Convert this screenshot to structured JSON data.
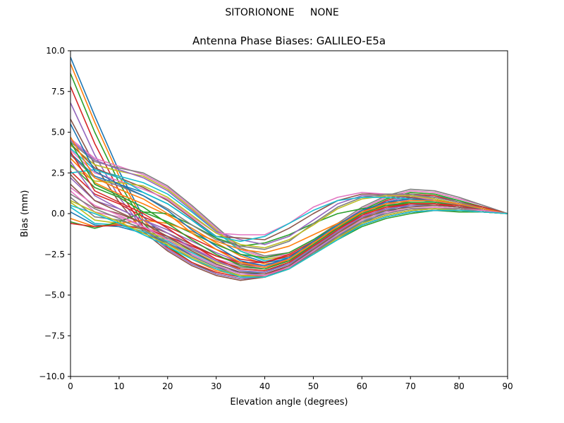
{
  "figure": {
    "suptitle": "SITORIONONE     NONE"
  },
  "chart_data": {
    "type": "line",
    "title": "Antenna Phase Biases: GALILEO-E5a",
    "xlabel": "Elevation angle (degrees)",
    "ylabel": "Bias (mm)",
    "xlim": [
      0,
      90
    ],
    "ylim": [
      -10,
      10
    ],
    "xticks": [
      0,
      10,
      20,
      30,
      40,
      50,
      60,
      70,
      80,
      90
    ],
    "xtick_labels": [
      "0",
      "10",
      "20",
      "30",
      "40",
      "50",
      "60",
      "70",
      "80",
      "90"
    ],
    "yticks": [
      -10,
      -7.5,
      -5,
      -2.5,
      0,
      2.5,
      5,
      7.5,
      10
    ],
    "ytick_labels": [
      "−10.0",
      "−7.5",
      "−5.0",
      "−2.5",
      "0.0",
      "2.5",
      "5.0",
      "7.5",
      "10.0"
    ],
    "grid": false,
    "legend": "none",
    "x": [
      0,
      5,
      10,
      15,
      20,
      25,
      30,
      35,
      40,
      45,
      50,
      55,
      60,
      65,
      70,
      75,
      80,
      85,
      90
    ],
    "series": [
      {
        "color": "#1f77b4",
        "values": [
          9.6,
          6.0,
          2.6,
          -0.2,
          -1.6,
          -2.6,
          -3.3,
          -3.6,
          -3.6,
          -3.0,
          -2.2,
          -1.3,
          -0.6,
          -0.1,
          0.2,
          0.3,
          0.2,
          0.1,
          0.0
        ]
      },
      {
        "color": "#ff7f0e",
        "values": [
          9.2,
          5.6,
          2.3,
          -0.4,
          -1.8,
          -2.8,
          -3.5,
          -3.8,
          -3.8,
          -3.2,
          -2.4,
          -1.5,
          -0.7,
          -0.2,
          0.1,
          0.2,
          0.2,
          0.1,
          0.0
        ]
      },
      {
        "color": "#2ca02c",
        "values": [
          8.6,
          5.0,
          1.9,
          -0.6,
          -2.0,
          -3.0,
          -3.7,
          -4.0,
          -3.9,
          -3.3,
          -2.5,
          -1.6,
          -0.8,
          -0.3,
          0.0,
          0.2,
          0.1,
          0.1,
          0.0
        ]
      },
      {
        "color": "#d62728",
        "values": [
          7.8,
          4.3,
          1.4,
          -0.8,
          -2.1,
          -3.0,
          -3.6,
          -3.9,
          -3.8,
          -3.2,
          -2.3,
          -1.4,
          -0.6,
          -0.1,
          0.2,
          0.3,
          0.2,
          0.1,
          0.0
        ]
      },
      {
        "color": "#9467bd",
        "values": [
          6.8,
          3.6,
          1.0,
          -0.9,
          -2.2,
          -3.1,
          -3.7,
          -4.0,
          -3.9,
          -3.3,
          -2.4,
          -1.5,
          -0.7,
          -0.2,
          0.1,
          0.2,
          0.2,
          0.1,
          0.0
        ]
      },
      {
        "color": "#8c564b",
        "values": [
          5.8,
          3.0,
          0.7,
          -1.1,
          -2.3,
          -3.2,
          -3.8,
          -4.1,
          -3.9,
          -3.3,
          -2.4,
          -1.5,
          -0.7,
          -0.2,
          0.1,
          0.2,
          0.2,
          0.1,
          0.0
        ]
      },
      {
        "color": "#e377c2",
        "values": [
          4.6,
          3.4,
          2.9,
          2.4,
          1.6,
          0.4,
          -0.9,
          -2.2,
          -2.7,
          -2.5,
          -1.7,
          -0.7,
          0.3,
          1.0,
          1.4,
          1.3,
          0.9,
          0.5,
          0.0
        ]
      },
      {
        "color": "#7f7f7f",
        "values": [
          4.4,
          3.2,
          2.8,
          2.5,
          1.7,
          0.5,
          -0.8,
          -2.1,
          -2.6,
          -2.4,
          -1.6,
          -0.6,
          0.4,
          1.1,
          1.5,
          1.4,
          1.0,
          0.5,
          0.0
        ]
      },
      {
        "color": "#bcbd22",
        "values": [
          4.2,
          3.0,
          2.6,
          2.3,
          1.5,
          0.3,
          -1.0,
          -2.3,
          -2.8,
          -2.6,
          -1.8,
          -0.8,
          0.2,
          0.9,
          1.3,
          1.2,
          0.8,
          0.4,
          0.0
        ]
      },
      {
        "color": "#17becf",
        "values": [
          4.0,
          2.7,
          2.3,
          1.9,
          1.2,
          0.1,
          -1.1,
          -2.3,
          -2.9,
          -2.7,
          -1.9,
          -0.9,
          0.1,
          0.8,
          1.2,
          1.1,
          0.8,
          0.4,
          0.0
        ]
      },
      {
        "color": "#1f77b4",
        "values": [
          3.7,
          2.3,
          1.8,
          1.3,
          0.6,
          -0.4,
          -1.5,
          -2.5,
          -3.0,
          -2.8,
          -2.0,
          -1.0,
          0.0,
          0.7,
          1.1,
          1.0,
          0.7,
          0.4,
          0.0
        ]
      },
      {
        "color": "#ff7f0e",
        "values": [
          3.4,
          1.9,
          1.2,
          0.6,
          -0.1,
          -0.9,
          -1.8,
          -2.6,
          -3.1,
          -2.9,
          -2.1,
          -1.1,
          -0.1,
          0.6,
          1.0,
          0.9,
          0.6,
          0.3,
          0.0
        ]
      },
      {
        "color": "#2ca02c",
        "values": [
          3.0,
          1.6,
          1.0,
          0.1,
          -0.5,
          -1.2,
          -1.9,
          -2.5,
          -2.7,
          -2.4,
          -1.6,
          -0.7,
          0.2,
          0.9,
          1.3,
          1.2,
          0.8,
          0.4,
          0.0
        ]
      },
      {
        "color": "#d62728",
        "values": [
          2.6,
          1.2,
          0.6,
          -0.2,
          -0.8,
          -1.5,
          -2.2,
          -2.8,
          -3.0,
          -2.6,
          -1.8,
          -0.8,
          0.1,
          0.8,
          1.2,
          1.1,
          0.7,
          0.4,
          0.0
        ]
      },
      {
        "color": "#9467bd",
        "values": [
          2.2,
          0.8,
          0.3,
          -0.4,
          -1.0,
          -1.7,
          -2.4,
          -3.0,
          -3.2,
          -2.8,
          -1.9,
          -0.9,
          0.0,
          0.7,
          1.1,
          1.0,
          0.7,
          0.3,
          0.0
        ]
      },
      {
        "color": "#8c564b",
        "values": [
          1.8,
          0.4,
          0.0,
          -0.6,
          -1.2,
          -1.9,
          -2.6,
          -3.1,
          -3.3,
          -2.9,
          -2.0,
          -1.0,
          -0.1,
          0.6,
          1.0,
          0.9,
          0.6,
          0.3,
          0.0
        ]
      },
      {
        "color": "#e377c2",
        "values": [
          1.4,
          0.1,
          -0.2,
          -0.8,
          -1.4,
          -2.1,
          -2.8,
          -3.2,
          -3.3,
          -2.8,
          -1.9,
          -1.0,
          -0.2,
          0.5,
          0.9,
          0.9,
          0.6,
          0.3,
          0.0
        ]
      },
      {
        "color": "#7f7f7f",
        "values": [
          1.0,
          -0.2,
          -0.4,
          -0.9,
          -1.5,
          -2.2,
          -2.9,
          -3.3,
          -3.4,
          -2.9,
          -2.0,
          -1.1,
          -0.3,
          0.4,
          0.8,
          0.8,
          0.5,
          0.3,
          0.0
        ]
      },
      {
        "color": "#bcbd22",
        "values": [
          0.7,
          -0.4,
          -0.6,
          -1.0,
          -1.6,
          -2.3,
          -3.0,
          -3.4,
          -3.5,
          -3.0,
          -2.1,
          -1.2,
          -0.4,
          0.3,
          0.7,
          0.7,
          0.5,
          0.2,
          0.0
        ]
      },
      {
        "color": "#17becf",
        "values": [
          0.4,
          -0.6,
          -0.7,
          -1.1,
          -1.7,
          -2.4,
          -3.1,
          -3.6,
          -3.6,
          -3.1,
          -2.2,
          -1.3,
          -0.5,
          0.2,
          0.6,
          0.6,
          0.4,
          0.2,
          0.0
        ]
      },
      {
        "color": "#1f77b4",
        "values": [
          0.1,
          -0.7,
          -0.8,
          -1.2,
          -1.8,
          -2.5,
          -3.2,
          -3.7,
          -3.7,
          -3.2,
          -2.3,
          -1.4,
          -0.6,
          0.1,
          0.5,
          0.5,
          0.4,
          0.2,
          0.0
        ]
      },
      {
        "color": "#ff7f0e",
        "values": [
          -0.3,
          -0.8,
          -0.6,
          -0.4,
          -0.6,
          -1.1,
          -1.7,
          -2.2,
          -2.4,
          -2.0,
          -1.3,
          -0.6,
          0.0,
          0.4,
          0.6,
          0.6,
          0.4,
          0.2,
          0.0
        ]
      },
      {
        "color": "#2ca02c",
        "values": [
          -0.5,
          -0.9,
          -0.5,
          0.1,
          0.0,
          -0.7,
          -1.5,
          -2.0,
          -1.8,
          -1.3,
          -0.6,
          0.0,
          0.3,
          0.5,
          0.6,
          0.5,
          0.4,
          0.2,
          0.0
        ]
      },
      {
        "color": "#d62728",
        "values": [
          -0.6,
          -0.8,
          -0.7,
          -0.9,
          -1.4,
          -2.0,
          -2.6,
          -3.0,
          -3.0,
          -2.5,
          -1.7,
          -0.9,
          -0.2,
          0.3,
          0.6,
          0.6,
          0.4,
          0.2,
          0.0
        ]
      },
      {
        "color": "#9467bd",
        "values": [
          4.5,
          3.3,
          2.7,
          2.2,
          1.4,
          0.2,
          -1.1,
          -1.6,
          -1.9,
          -1.4,
          -0.4,
          0.6,
          1.1,
          1.1,
          1.0,
          0.8,
          0.6,
          0.3,
          0.0
        ]
      },
      {
        "color": "#8c564b",
        "values": [
          4.3,
          2.8,
          2.2,
          1.6,
          0.8,
          -0.3,
          -1.4,
          -1.5,
          -1.6,
          -0.9,
          0.0,
          0.8,
          1.2,
          1.2,
          1.0,
          0.8,
          0.5,
          0.3,
          0.0
        ]
      },
      {
        "color": "#e377c2",
        "values": [
          3.9,
          2.5,
          2.0,
          1.5,
          0.9,
          -0.2,
          -1.2,
          -1.3,
          -1.3,
          -0.6,
          0.4,
          1.0,
          1.3,
          1.2,
          1.1,
          0.8,
          0.5,
          0.3,
          0.0
        ]
      },
      {
        "color": "#7f7f7f",
        "values": [
          3.6,
          2.2,
          1.7,
          1.1,
          0.3,
          -0.7,
          -1.6,
          -2.0,
          -2.2,
          -1.7,
          -0.6,
          0.4,
          1.0,
          1.2,
          1.2,
          1.0,
          0.7,
          0.3,
          0.0
        ]
      },
      {
        "color": "#bcbd22",
        "values": [
          2.9,
          2.0,
          1.9,
          1.7,
          1.0,
          -0.1,
          -1.2,
          -1.9,
          -2.1,
          -1.6,
          -0.7,
          0.3,
          0.9,
          1.1,
          1.1,
          0.9,
          0.6,
          0.3,
          0.0
        ]
      },
      {
        "color": "#17becf",
        "values": [
          2.5,
          2.7,
          2.2,
          1.3,
          0.6,
          -0.4,
          -1.4,
          -1.7,
          -1.4,
          -0.6,
          0.2,
          0.8,
          1.0,
          1.0,
          0.9,
          0.7,
          0.5,
          0.3,
          0.0
        ]
      },
      {
        "color": "#1f77b4",
        "values": [
          5.5,
          2.6,
          1.8,
          1.1,
          0.2,
          -1.0,
          -2.0,
          -2.9,
          -3.2,
          -2.7,
          -1.7,
          -0.7,
          0.2,
          0.7,
          0.9,
          0.8,
          0.6,
          0.3,
          0.0
        ]
      },
      {
        "color": "#ff7f0e",
        "values": [
          4.7,
          2.2,
          1.5,
          0.9,
          0.0,
          -1.2,
          -2.2,
          -3.0,
          -3.3,
          -2.8,
          -1.8,
          -0.8,
          0.1,
          0.6,
          0.8,
          0.8,
          0.6,
          0.3,
          0.0
        ]
      },
      {
        "color": "#2ca02c",
        "values": [
          4.4,
          1.8,
          1.1,
          0.4,
          -0.6,
          -1.6,
          -2.5,
          -3.2,
          -3.4,
          -2.9,
          -1.9,
          -0.9,
          0.0,
          0.5,
          0.7,
          0.7,
          0.5,
          0.2,
          0.0
        ]
      },
      {
        "color": "#d62728",
        "values": [
          3.8,
          1.4,
          0.7,
          0.0,
          -0.9,
          -1.9,
          -2.8,
          -3.4,
          -3.5,
          -3.0,
          -2.0,
          -1.0,
          -0.1,
          0.4,
          0.6,
          0.6,
          0.5,
          0.2,
          0.0
        ]
      },
      {
        "color": "#9467bd",
        "values": [
          3.2,
          1.1,
          0.3,
          -0.4,
          -1.2,
          -2.1,
          -2.9,
          -3.5,
          -3.6,
          -3.1,
          -2.1,
          -1.1,
          -0.2,
          0.3,
          0.5,
          0.5,
          0.4,
          0.2,
          0.0
        ]
      },
      {
        "color": "#8c564b",
        "values": [
          2.4,
          0.8,
          0.1,
          -0.6,
          -1.4,
          -2.3,
          -3.1,
          -3.6,
          -3.7,
          -3.2,
          -2.2,
          -1.2,
          -0.3,
          0.2,
          0.4,
          0.5,
          0.4,
          0.2,
          0.0
        ]
      },
      {
        "color": "#e377c2",
        "values": [
          1.6,
          0.5,
          -0.1,
          -0.8,
          -1.6,
          -2.5,
          -3.2,
          -3.7,
          -3.8,
          -3.3,
          -2.3,
          -1.3,
          -0.4,
          0.1,
          0.3,
          0.4,
          0.3,
          0.2,
          0.0
        ]
      },
      {
        "color": "#7f7f7f",
        "values": [
          1.2,
          0.3,
          -0.3,
          -1.0,
          -1.8,
          -2.6,
          -3.3,
          -3.8,
          -3.9,
          -3.4,
          -2.4,
          -1.4,
          -0.5,
          0.0,
          0.3,
          0.3,
          0.3,
          0.1,
          0.0
        ]
      },
      {
        "color": "#bcbd22",
        "values": [
          0.8,
          0.1,
          -0.5,
          -1.2,
          -1.9,
          -2.7,
          -3.4,
          -3.8,
          -3.9,
          -3.4,
          -2.5,
          -1.5,
          -0.6,
          -0.1,
          0.2,
          0.3,
          0.2,
          0.1,
          0.0
        ]
      },
      {
        "color": "#17becf",
        "values": [
          0.5,
          0.0,
          -0.6,
          -1.3,
          -2.0,
          -2.8,
          -3.4,
          -3.9,
          -3.9,
          -3.4,
          -2.5,
          -1.6,
          -0.7,
          -0.2,
          0.1,
          0.2,
          0.2,
          0.1,
          0.0
        ]
      }
    ]
  }
}
